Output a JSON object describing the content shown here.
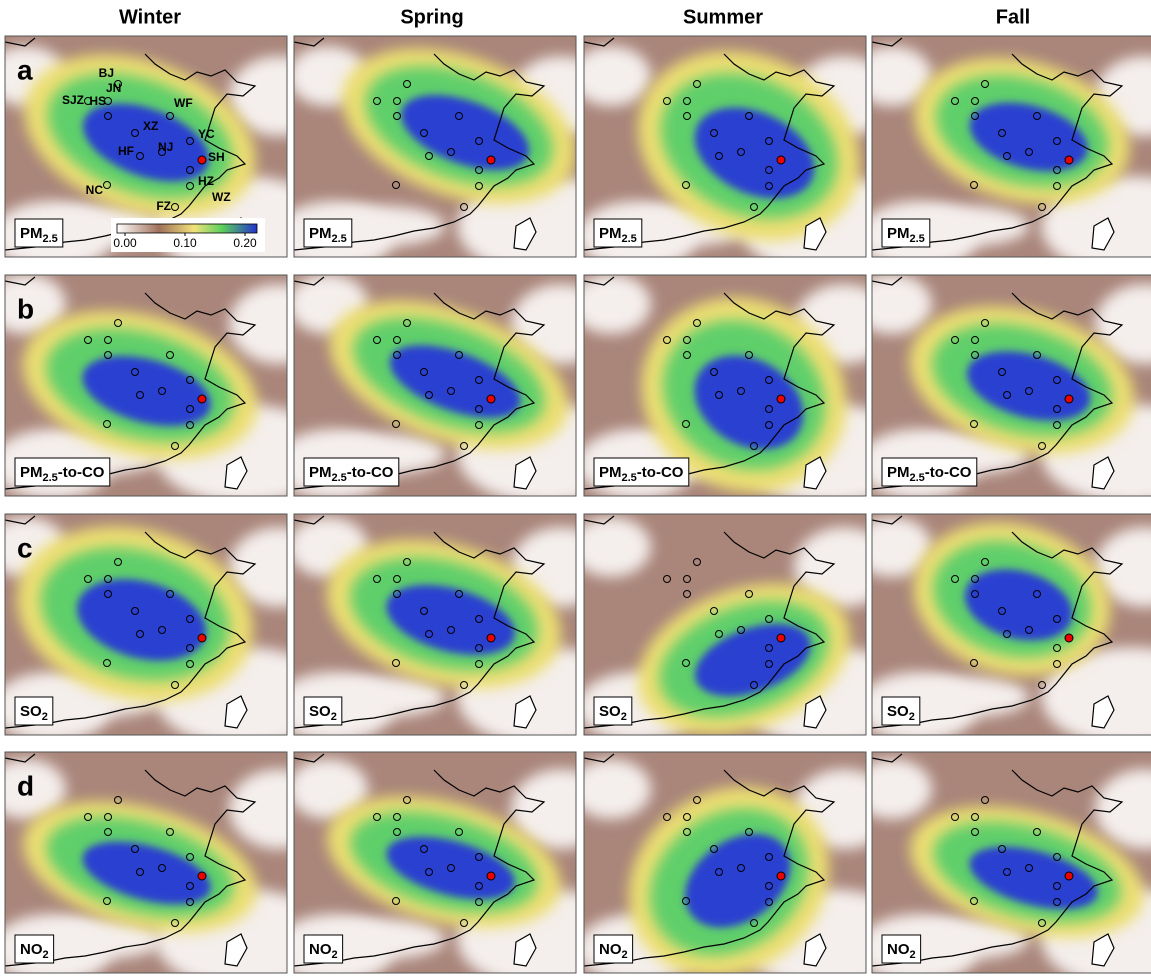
{
  "columns": [
    "Winter",
    "Spring",
    "Summer",
    "Fall"
  ],
  "rows": [
    {
      "letter": "a",
      "label": {
        "main": "PM",
        "sub": "2.5"
      }
    },
    {
      "letter": "b",
      "label": {
        "main": "PM",
        "sub": "2.5",
        "tail": "-to-CO"
      }
    },
    {
      "letter": "c",
      "label": {
        "main": "SO",
        "sub": "2"
      }
    },
    {
      "letter": "d",
      "label": {
        "main": "NO",
        "sub": "2"
      }
    }
  ],
  "cities": [
    "BJ",
    "SJZ",
    "JN",
    "WF",
    "HS",
    "XZ",
    "YC",
    "HF",
    "NJ",
    "SH",
    "HZ",
    "NC",
    "FZ",
    "WZ"
  ],
  "colorbar": {
    "ticks": [
      {
        "value": 0,
        "label": "0.00"
      },
      {
        "value": 0.1,
        "label": "0.10"
      },
      {
        "value": 0.2,
        "label": "0.20"
      }
    ]
  }
}
